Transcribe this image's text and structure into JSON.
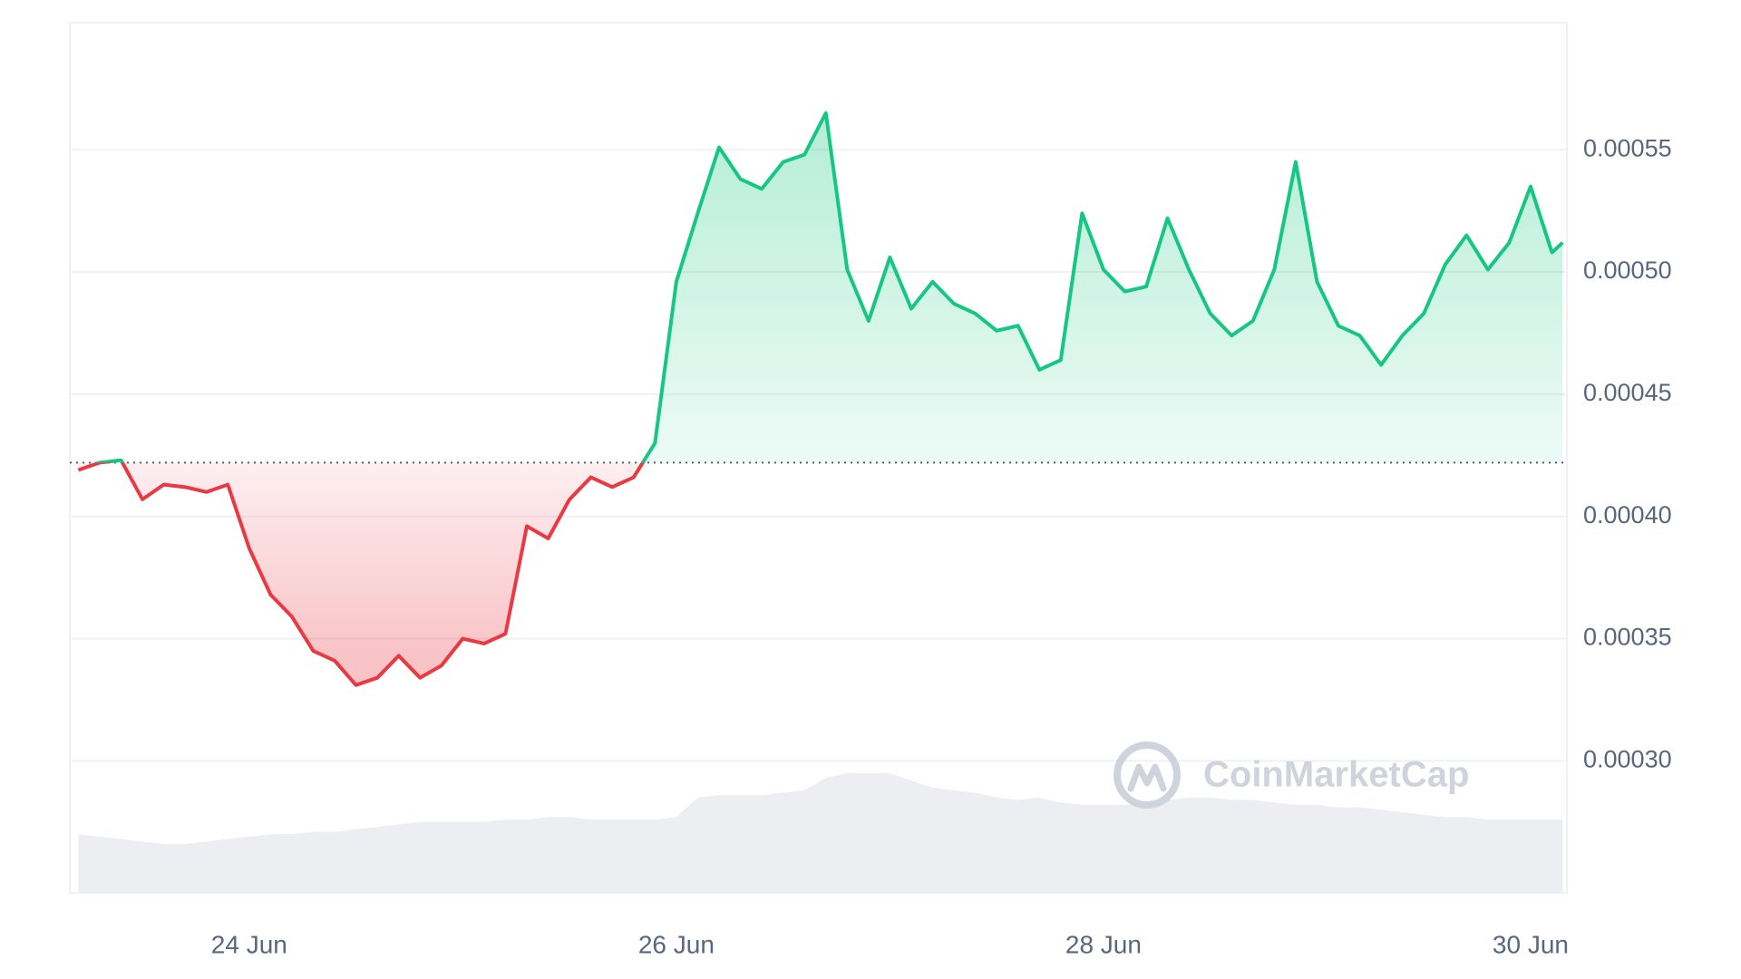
{
  "chart_data": {
    "type": "line",
    "watermark": "CoinMarketCap",
    "x": [
      23.2,
      23.3,
      23.4,
      23.5,
      23.6,
      23.7,
      23.8,
      23.9,
      24.0,
      24.1,
      24.2,
      24.3,
      24.4,
      24.5,
      24.6,
      24.7,
      24.8,
      24.9,
      25.0,
      25.1,
      25.2,
      25.3,
      25.4,
      25.5,
      25.6,
      25.7,
      25.8,
      25.9,
      26.0,
      26.1,
      26.2,
      26.3,
      26.4,
      26.5,
      26.6,
      26.7,
      26.8,
      26.9,
      27.0,
      27.1,
      27.2,
      27.3,
      27.4,
      27.5,
      27.6,
      27.7,
      27.8,
      27.9,
      28.0,
      28.1,
      28.2,
      28.3,
      28.4,
      28.5,
      28.6,
      28.7,
      28.8,
      28.9,
      29.0,
      29.1,
      29.2,
      29.3,
      29.4,
      29.5,
      29.6,
      29.7,
      29.8,
      29.9,
      30.0,
      30.1,
      30.15
    ],
    "values": [
      0.000419,
      0.000422,
      0.000423,
      0.000407,
      0.000413,
      0.000412,
      0.00041,
      0.000413,
      0.000387,
      0.000368,
      0.000359,
      0.000345,
      0.000341,
      0.000331,
      0.000334,
      0.000343,
      0.000334,
      0.000339,
      0.00035,
      0.000348,
      0.000352,
      0.000396,
      0.000391,
      0.000407,
      0.000416,
      0.000412,
      0.000416,
      0.00043,
      0.000496,
      0.000524,
      0.000551,
      0.000538,
      0.000534,
      0.000545,
      0.000548,
      0.000565,
      0.000501,
      0.00048,
      0.000506,
      0.000485,
      0.000496,
      0.000487,
      0.000483,
      0.000476,
      0.000478,
      0.00046,
      0.000464,
      0.000524,
      0.000501,
      0.000492,
      0.000494,
      0.000522,
      0.000501,
      0.000483,
      0.000474,
      0.00048,
      0.000501,
      0.000545,
      0.000496,
      0.000478,
      0.000474,
      0.000462,
      0.000474,
      0.000483,
      0.000503,
      0.000515,
      0.000501,
      0.000512,
      0.000535,
      0.000508,
      0.000512
    ],
    "baseline": 0.000422,
    "up_color": "#16c784",
    "down_color": "#ea3943",
    "volume": {
      "color": "#eceef1",
      "values": [
        0.00027,
        0.000269,
        0.000268,
        0.000267,
        0.000266,
        0.000266,
        0.000267,
        0.000268,
        0.000269,
        0.00027,
        0.00027,
        0.000271,
        0.000271,
        0.000272,
        0.000273,
        0.000274,
        0.000275,
        0.000275,
        0.000275,
        0.000275,
        0.000276,
        0.000276,
        0.000277,
        0.000277,
        0.000276,
        0.000276,
        0.000276,
        0.000276,
        0.000277,
        0.000285,
        0.000286,
        0.000286,
        0.000286,
        0.000287,
        0.000288,
        0.000293,
        0.000295,
        0.000295,
        0.000295,
        0.000292,
        0.000289,
        0.000288,
        0.000287,
        0.000285,
        0.000284,
        0.000285,
        0.000283,
        0.000282,
        0.000282,
        0.000282,
        0.000283,
        0.000284,
        0.000285,
        0.000285,
        0.000284,
        0.000284,
        0.000283,
        0.000282,
        0.000282,
        0.000281,
        0.000281,
        0.00028,
        0.000279,
        0.000278,
        0.000277,
        0.000277,
        0.000276,
        0.000276,
        0.000276,
        0.000276,
        0.000276
      ]
    },
    "xlim": [
      23.16,
      30.17
    ],
    "ylim": [
      0.000246,
      0.000602
    ],
    "xticks": [
      {
        "value": 24,
        "label": "24 Jun"
      },
      {
        "value": 26,
        "label": "26 Jun"
      },
      {
        "value": 28,
        "label": "28 Jun"
      },
      {
        "value": 30,
        "label": "30 Jun"
      }
    ],
    "yticks": [
      {
        "value": 0.0003,
        "label": "0.00030"
      },
      0.00035,
      {
        "value": 0.0004,
        "label": "0.00040"
      },
      0.00045,
      {
        "value": 0.0005,
        "label": "0.00050"
      },
      0.00055
    ],
    "grid": true
  }
}
